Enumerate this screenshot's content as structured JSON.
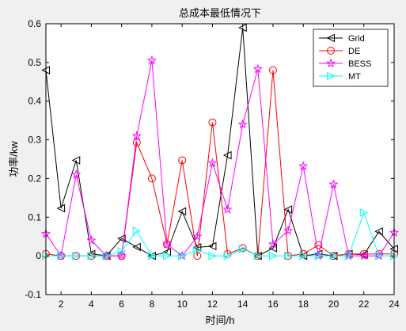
{
  "chart_data": {
    "type": "line",
    "title": "总成本最低情况下",
    "xlabel": "时间/h",
    "ylabel": "功率/kw",
    "xlim": [
      1,
      24
    ],
    "ylim": [
      -0.1,
      0.6
    ],
    "xticks": [
      2,
      4,
      6,
      8,
      10,
      12,
      14,
      16,
      18,
      20,
      22,
      24
    ],
    "yticks": [
      -0.1,
      0,
      0.1,
      0.2,
      0.3,
      0.4,
      0.5,
      0.6
    ],
    "grid": false,
    "legend_position": "top-right",
    "x": [
      1,
      2,
      3,
      4,
      5,
      6,
      7,
      8,
      9,
      10,
      11,
      12,
      13,
      14,
      15,
      16,
      17,
      18,
      19,
      20,
      21,
      22,
      23,
      24
    ],
    "series": [
      {
        "name": "Grid",
        "color": "#000000",
        "marker": "triangle-left",
        "values": [
          0.48,
          0.123,
          0.247,
          0.005,
          0.0,
          0.045,
          0.023,
          0.0,
          0.01,
          0.115,
          0.022,
          0.025,
          0.26,
          0.59,
          0.0,
          0.02,
          0.12,
          0.0,
          0.005,
          0.0,
          0.005,
          0.003,
          0.063,
          0.018
        ]
      },
      {
        "name": "DE",
        "color": "#ff0000",
        "marker": "circle",
        "values": [
          0.005,
          0.0,
          0.0,
          0.0,
          0.0,
          0.0,
          0.293,
          0.2,
          0.03,
          0.247,
          0.0,
          0.345,
          0.005,
          0.02,
          0.0,
          0.48,
          0.0,
          0.005,
          0.028,
          0.0,
          0.005,
          0.005,
          0.005,
          0.005
        ]
      },
      {
        "name": "BESS",
        "color": "#ff00ff",
        "marker": "star",
        "values": [
          0.057,
          0.0,
          0.21,
          0.04,
          0.0,
          0.0,
          0.31,
          0.505,
          0.03,
          0.0,
          0.05,
          0.24,
          0.12,
          0.34,
          0.483,
          0.03,
          0.065,
          0.232,
          0.0,
          0.185,
          0.0,
          0.0,
          0.0,
          0.06
        ]
      },
      {
        "name": "MT",
        "color": "#00ffff",
        "marker": "triangle-right",
        "values": [
          0.0,
          0.0,
          0.0,
          0.0,
          0.0,
          0.012,
          0.065,
          0.0,
          0.0,
          0.0,
          0.015,
          0.0,
          0.0,
          0.018,
          0.0,
          0.0,
          0.0,
          0.0,
          0.0,
          0.0,
          0.0,
          0.112,
          0.0,
          0.0
        ]
      }
    ]
  }
}
